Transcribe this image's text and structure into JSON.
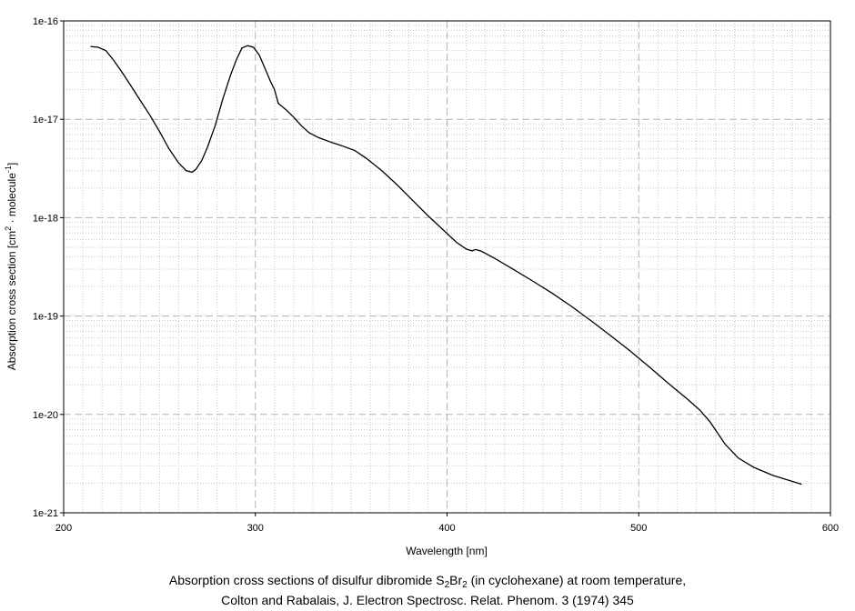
{
  "chart_data": {
    "type": "line",
    "xlabel": "Wavelength [nm]",
    "ylabel_parts": {
      "a": "Absorption cross section [cm",
      "sup1": "2",
      "b": " · molecule",
      "sup2": "-1",
      "c": "]"
    },
    "xlim": [
      200,
      600
    ],
    "ylim": [
      1e-21,
      1e-16
    ],
    "yscale": "log",
    "grid": true,
    "x_ticks": [
      "200",
      "300",
      "400",
      "500",
      "600"
    ],
    "y_ticks": [
      "1e-21",
      "1e-20",
      "1e-19",
      "1e-18",
      "1e-17",
      "1e-16"
    ],
    "series": [
      {
        "x": [
          214,
          218,
          222,
          226,
          230,
          235,
          240,
          245,
          250,
          255,
          260,
          264,
          267,
          269,
          272,
          275,
          279,
          283,
          287,
          290,
          293,
          296,
          299,
          302,
          305,
          308,
          310,
          312,
          316,
          320,
          324,
          328,
          333,
          340,
          345,
          352,
          358,
          366,
          374,
          382,
          390,
          398,
          405,
          410,
          413,
          415,
          418,
          425,
          435,
          445,
          455,
          465,
          475,
          485,
          495,
          505,
          515,
          525,
          532,
          537,
          540,
          545,
          552,
          560,
          570,
          585
        ],
        "y": [
          5.5e-17,
          5.4e-17,
          5e-17,
          4e-17,
          3.1e-17,
          2.2e-17,
          1.55e-17,
          1.1e-17,
          7.5e-18,
          5e-18,
          3.6e-18,
          3e-18,
          2.9e-18,
          3.1e-18,
          3.8e-18,
          5.2e-18,
          8.6e-18,
          1.6e-17,
          2.8e-17,
          4e-17,
          5.3e-17,
          5.6e-17,
          5.4e-17,
          4.5e-17,
          3.3e-17,
          2.4e-17,
          2e-17,
          1.45e-17,
          1.25e-17,
          1.05e-17,
          8.6e-18,
          7.3e-18,
          6.5e-18,
          5.8e-18,
          5.4e-18,
          4.8e-18,
          4e-18,
          3e-18,
          2.15e-18,
          1.5e-18,
          1.05e-18,
          7.5e-19,
          5.6e-19,
          4.8e-19,
          4.6e-19,
          4.75e-19,
          4.55e-19,
          3.85e-19,
          2.95e-19,
          2.25e-19,
          1.7e-19,
          1.25e-19,
          9e-20,
          6.4e-20,
          4.5e-20,
          3.1e-20,
          2.1e-20,
          1.45e-20,
          1.1e-20,
          8.5e-21,
          7e-21,
          5e-21,
          3.6e-21,
          2.9e-21,
          2.4e-21,
          1.95e-21
        ]
      }
    ]
  },
  "caption": {
    "line1_a": "Absorption cross sections of disulfur dibromide S",
    "line1_sub1": "2",
    "line1_b": "Br",
    "line1_sub2": "2",
    "line1_c": " (in cyclohexane) at room temperature,",
    "line2": "Colton and Rabalais,  J. Electron Spectrosc. Relat. Phenom. 3 (1974) 345"
  },
  "colors": {
    "line": "#000000",
    "minor_grid": "#c8c8c8",
    "major_grid": "#b4b4b4",
    "frame": "#000000"
  }
}
